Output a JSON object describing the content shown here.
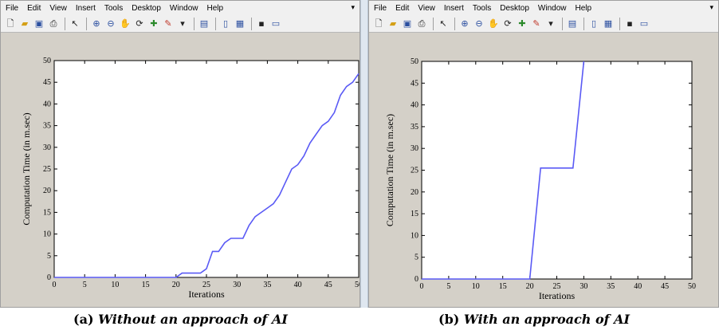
{
  "menu": [
    "File",
    "Edit",
    "View",
    "Insert",
    "Tools",
    "Desktop",
    "Window",
    "Help"
  ],
  "toolbar_icons": [
    "new-figure-icon",
    "open-file-icon",
    "save-icon",
    "print-icon",
    "pointer-icon",
    "zoom-in-icon",
    "zoom-out-icon",
    "pan-icon",
    "rotate-icon",
    "data-cursor-icon",
    "brush-icon",
    "link-icon",
    "colorbar-icon",
    "legend-icon",
    "hide-tools-icon",
    "show-tools-icon"
  ],
  "colors": {
    "line": "#5a5af5",
    "window_bg": "#d4d0c8",
    "plot_bg": "#ffffff"
  },
  "captions": {
    "a": {
      "label": "(a)",
      "text": "Without an approach of AI"
    },
    "b": {
      "label": "(b)",
      "text": "With an approach of AI"
    }
  },
  "chart_data": [
    {
      "type": "line",
      "xlabel": "Iterations",
      "ylabel": "Computation Time (in m.sec)",
      "xlim": [
        0,
        50
      ],
      "ylim": [
        0,
        50
      ],
      "xticks": [
        0,
        5,
        10,
        15,
        20,
        25,
        30,
        35,
        40,
        45,
        50
      ],
      "yticks": [
        0,
        5,
        10,
        15,
        20,
        25,
        30,
        35,
        40,
        45,
        50
      ],
      "grid": false,
      "series": [
        {
          "x": [
            0,
            20,
            21,
            24,
            25,
            26,
            27,
            28,
            29,
            31,
            32,
            33,
            34,
            35,
            36,
            37,
            38,
            39,
            40,
            41,
            42,
            43,
            44,
            45,
            46,
            47,
            48,
            49,
            50
          ],
          "y": [
            0,
            0,
            1,
            1,
            2,
            6,
            6,
            8,
            9,
            9,
            12,
            14,
            15,
            16,
            17,
            19,
            22,
            25,
            26,
            28,
            31,
            33,
            35,
            36,
            38,
            42,
            44,
            45,
            47
          ]
        }
      ]
    },
    {
      "type": "line",
      "xlabel": "Iterations",
      "ylabel": "Computation Time (in m.sec)",
      "xlim": [
        0,
        50
      ],
      "ylim": [
        0,
        50
      ],
      "xticks": [
        0,
        5,
        10,
        15,
        20,
        25,
        30,
        35,
        40,
        45,
        50
      ],
      "yticks": [
        0,
        5,
        10,
        15,
        20,
        25,
        30,
        35,
        40,
        45,
        50
      ],
      "grid": false,
      "series": [
        {
          "x": [
            0,
            20,
            22,
            28,
            30
          ],
          "y": [
            0,
            0,
            25.5,
            25.5,
            50
          ]
        }
      ]
    }
  ]
}
